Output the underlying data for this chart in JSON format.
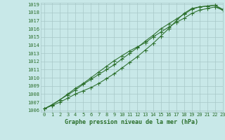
{
  "title": "Graphe pression niveau de la mer (hPa)",
  "background_color": "#c8e8e8",
  "grid_color": "#a8c8c8",
  "line_color": "#2a6e2a",
  "marker_color": "#2a6e2a",
  "xlim": [
    -0.5,
    23
  ],
  "ylim": [
    1005.8,
    1019.2
  ],
  "xticks": [
    0,
    1,
    2,
    3,
    4,
    5,
    6,
    7,
    8,
    9,
    10,
    11,
    12,
    13,
    14,
    15,
    16,
    17,
    18,
    19,
    20,
    21,
    22,
    23
  ],
  "yticks": [
    1006,
    1007,
    1008,
    1009,
    1010,
    1011,
    1012,
    1013,
    1014,
    1015,
    1016,
    1017,
    1018,
    1019
  ],
  "line1_x": [
    0,
    1,
    2,
    3,
    4,
    5,
    6,
    7,
    8,
    9,
    10,
    11,
    12,
    13,
    14,
    15,
    16,
    17,
    18,
    19,
    20,
    21,
    22,
    23
  ],
  "line1_y": [
    1006.2,
    1006.7,
    1007.3,
    1008.0,
    1008.7,
    1009.3,
    1010.0,
    1010.7,
    1011.4,
    1012.1,
    1012.7,
    1013.3,
    1013.8,
    1014.3,
    1015.0,
    1015.6,
    1016.2,
    1016.8,
    1017.3,
    1017.9,
    1018.3,
    1018.5,
    1018.7,
    1018.3
  ],
  "line2_x": [
    0,
    1,
    2,
    3,
    4,
    5,
    6,
    7,
    8,
    9,
    10,
    11,
    12,
    13,
    14,
    15,
    16,
    17,
    18,
    19,
    20,
    21,
    22,
    23
  ],
  "line2_y": [
    1006.2,
    1006.7,
    1007.3,
    1007.9,
    1008.5,
    1009.2,
    1009.8,
    1010.4,
    1011.0,
    1011.6,
    1012.3,
    1013.0,
    1013.7,
    1014.5,
    1015.2,
    1016.0,
    1016.6,
    1017.2,
    1017.8,
    1018.4,
    1018.7,
    1018.8,
    1018.9,
    1018.4
  ],
  "line3_x": [
    0,
    1,
    2,
    3,
    4,
    5,
    6,
    7,
    8,
    9,
    10,
    11,
    12,
    13,
    14,
    15,
    16,
    17,
    18,
    19,
    20,
    21,
    22,
    23
  ],
  "line3_y": [
    1006.2,
    1006.6,
    1007.0,
    1007.5,
    1008.0,
    1008.4,
    1008.8,
    1009.3,
    1009.9,
    1010.5,
    1011.2,
    1011.9,
    1012.6,
    1013.4,
    1014.2,
    1015.1,
    1016.0,
    1017.0,
    1017.9,
    1018.5,
    1018.7,
    1018.8,
    1018.9,
    1018.3
  ],
  "tick_fontsize": 5.0,
  "xlabel_fontsize": 6.0,
  "linewidth": 0.75,
  "markersize": 2.0
}
